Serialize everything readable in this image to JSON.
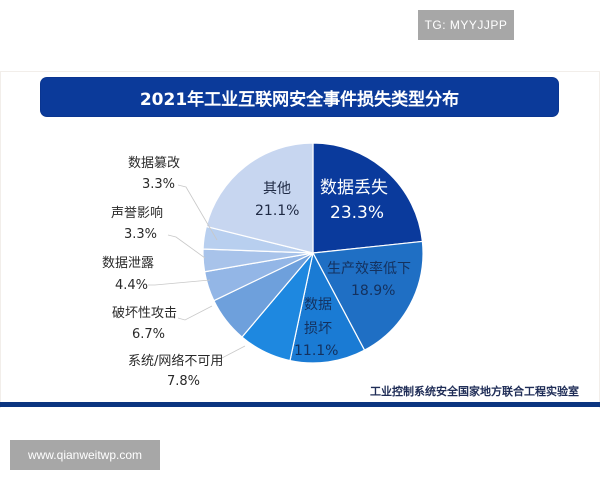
{
  "watermark_top": "TG: MYYJJPP",
  "watermark_bottom": "www.qianweitwp.com",
  "source": "工业控制系统安全国家地方联合工程实验室",
  "colors": {
    "title_bar": "#0b3a9a",
    "bottom_line": "#0b3580"
  },
  "chart_data": {
    "type": "pie",
    "title": "2021年工业互联网安全事件损失类型分布",
    "start_angle": "12 o'clock",
    "direction": "clockwise",
    "categories": [
      "数据丢失",
      "生产效率低下",
      "数据损坏",
      "系统/网络不可用",
      "破坏性攻击",
      "数据泄露",
      "声誉影响",
      "数据篡改",
      "其他"
    ],
    "values": [
      23.3,
      18.9,
      11.1,
      7.8,
      6.7,
      4.4,
      3.3,
      3.3,
      21.1
    ],
    "unit": "%",
    "colors": [
      "#0a3a9c",
      "#1f6fc4",
      "#1a7bd4",
      "#1e88e0",
      "#6ea0dc",
      "#93b6e6",
      "#a8c3ea",
      "#b8cfef",
      "#c7d6f0"
    ],
    "labels": [
      {
        "name": "数据丢失",
        "pct": "23.3%"
      },
      {
        "name": "生产效率低下",
        "pct": "18.9%"
      },
      {
        "name": "数据",
        "name2": "损坏",
        "pct": "11.1%"
      },
      {
        "name": "系统/网络不可用",
        "pct": "7.8%"
      },
      {
        "name": "破坏性攻击",
        "pct": "6.7%"
      },
      {
        "name": "数据泄露",
        "pct": "4.4%"
      },
      {
        "name": "声誉影响",
        "pct": "3.3%"
      },
      {
        "name": "数据篡改",
        "pct": "3.3%"
      },
      {
        "name": "其他",
        "pct": "21.1%"
      }
    ],
    "legend": "none (labels on/next to slices)"
  }
}
